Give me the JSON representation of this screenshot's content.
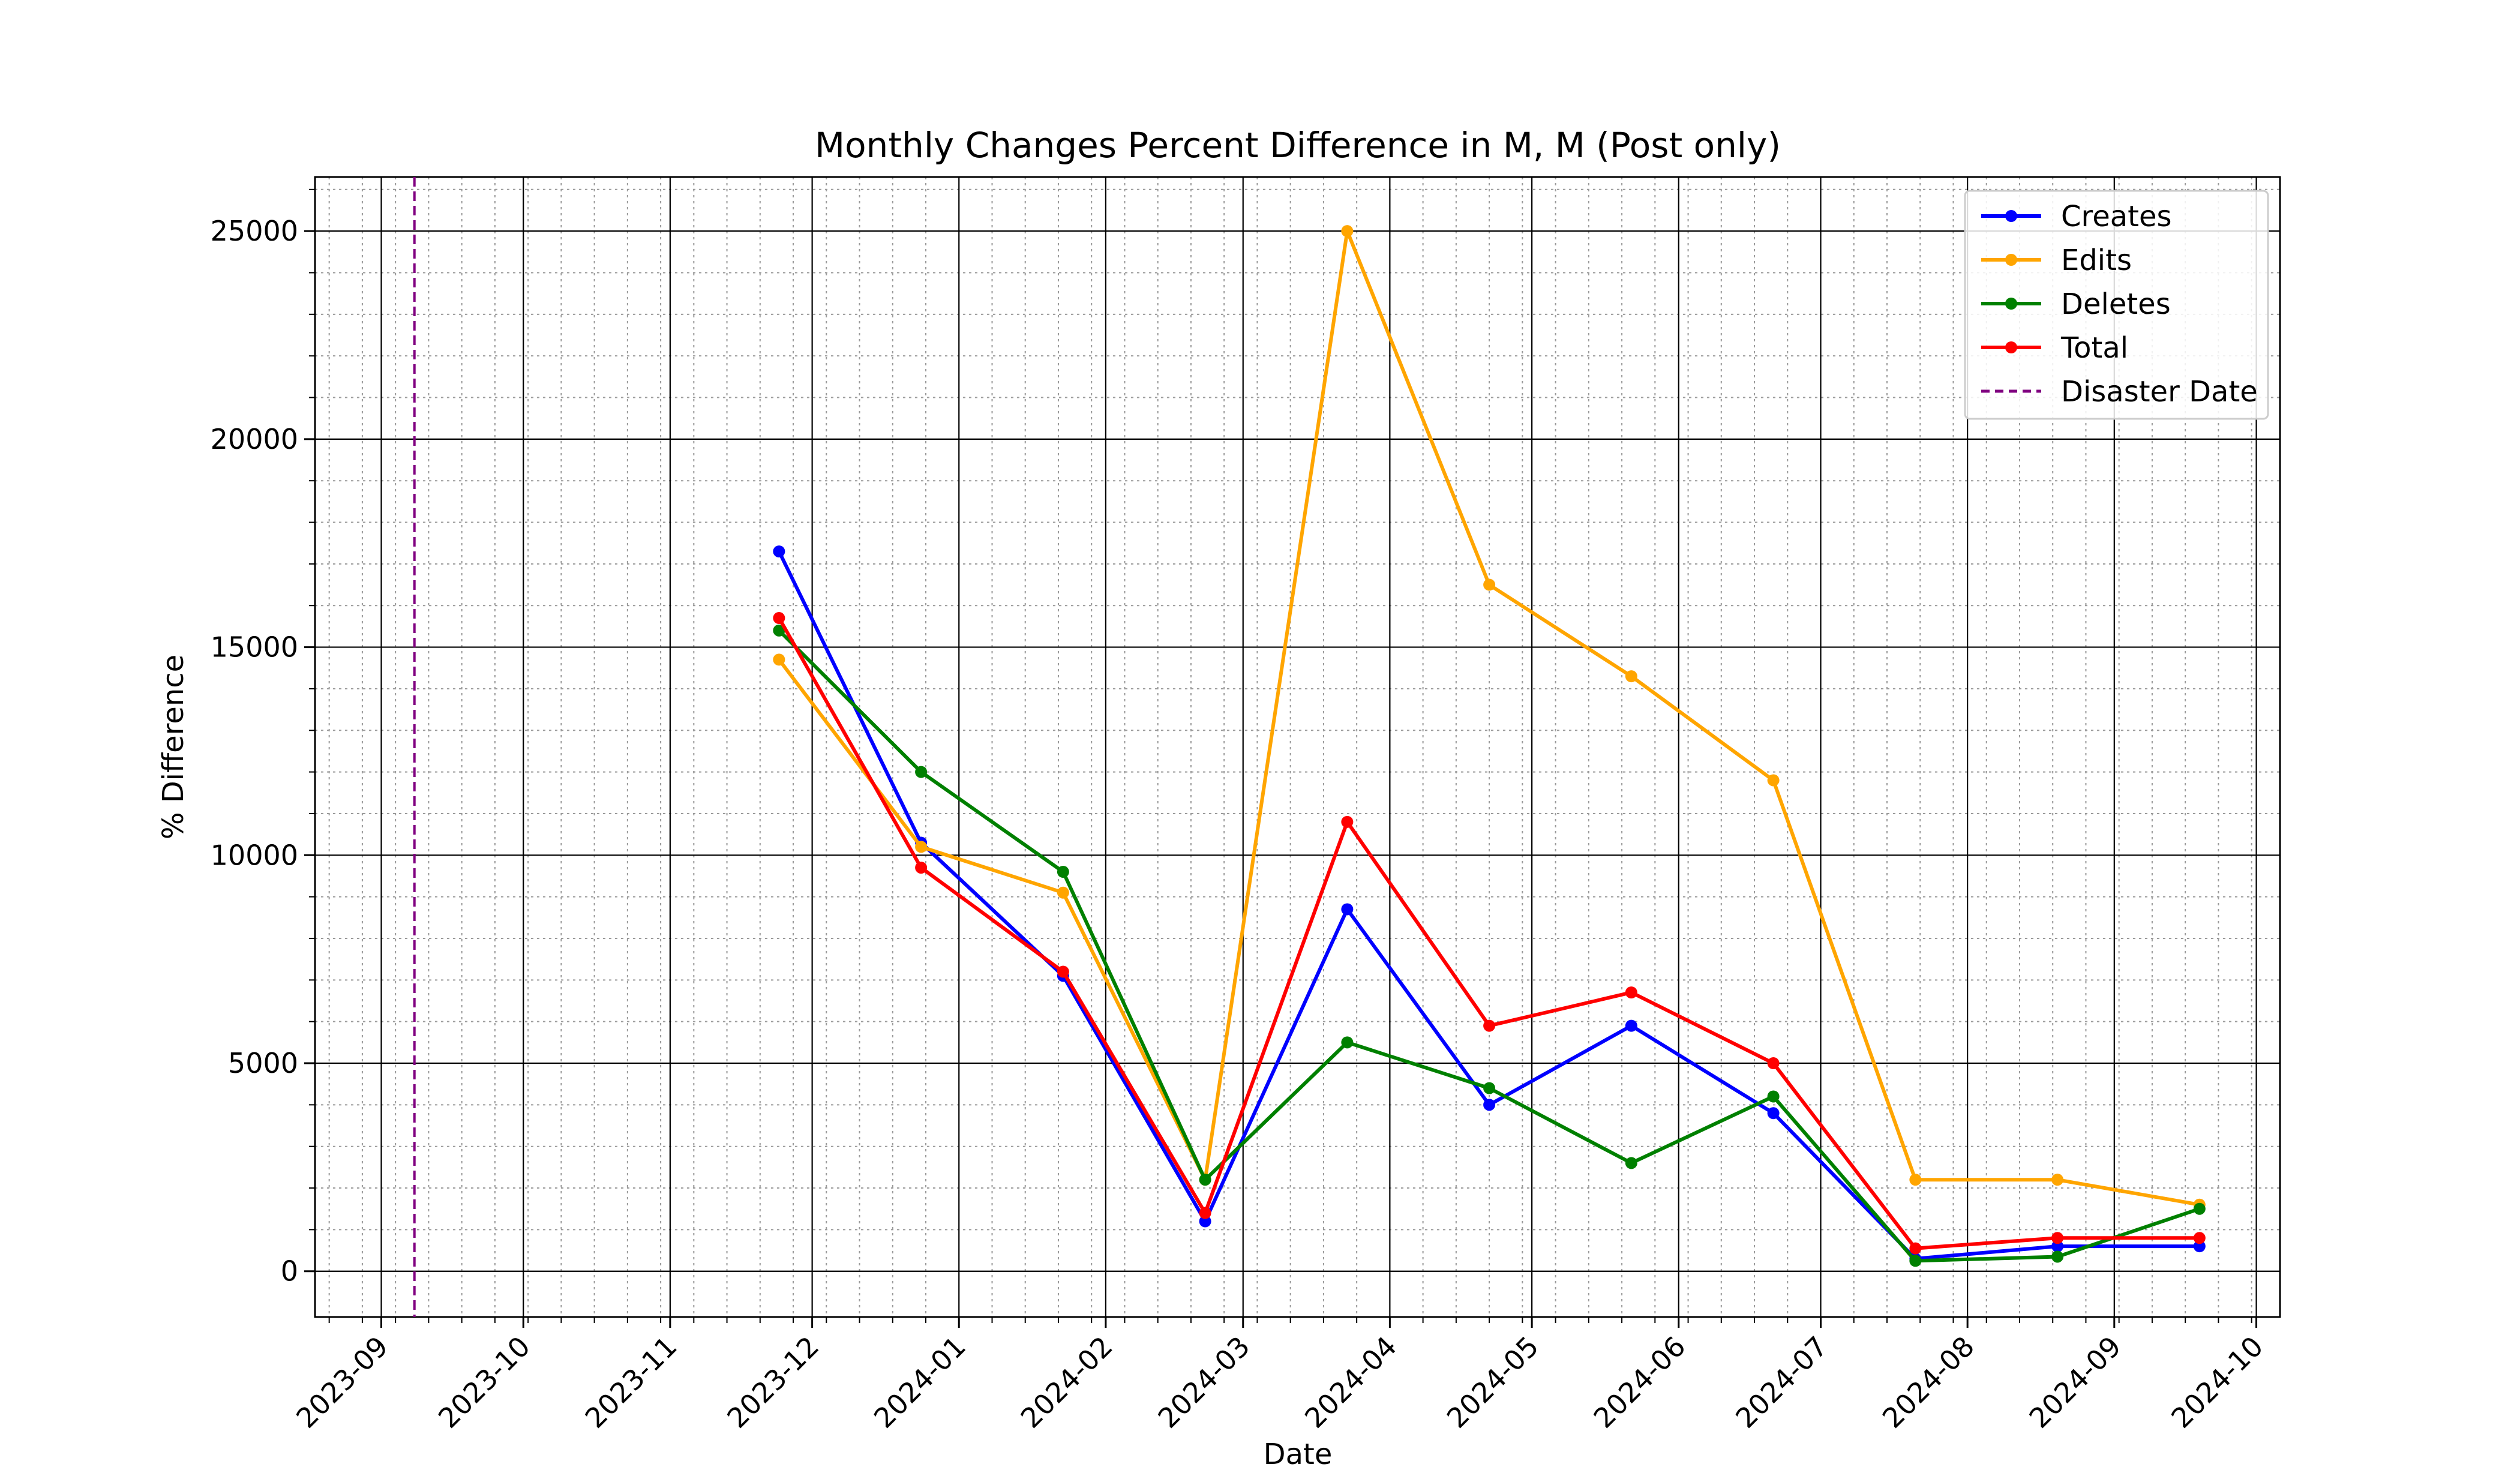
{
  "chart_data": {
    "type": "line",
    "title": "Monthly Changes Percent Difference in M, M (Post only)",
    "xlabel": "Date",
    "ylabel": "% Difference",
    "x_tick_labels": [
      "2023-09",
      "2023-10",
      "2023-11",
      "2023-12",
      "2024-01",
      "2024-02",
      "2024-03",
      "2024-04",
      "2024-05",
      "2024-06",
      "2024-07",
      "2024-08",
      "2024-09",
      "2024-10"
    ],
    "y_tick_labels": [
      "0",
      "5000",
      "10000",
      "15000",
      "20000",
      "25000"
    ],
    "ylim": [
      -1100,
      26300
    ],
    "xlim": [
      "2023-08-18",
      "2024-10-06"
    ],
    "grid": true,
    "legend_position": "top-right",
    "x": [
      "2023-11-24",
      "2023-12-24",
      "2024-01-23",
      "2024-02-22",
      "2024-03-23",
      "2024-04-22",
      "2024-05-22",
      "2024-06-21",
      "2024-07-21",
      "2024-08-20",
      "2024-09-19"
    ],
    "series": [
      {
        "name": "Creates",
        "color": "#0000ff",
        "values": [
          17300,
          10300,
          7100,
          1200,
          8700,
          4000,
          5900,
          3800,
          300,
          600,
          600
        ]
      },
      {
        "name": "Edits",
        "color": "#ffa500",
        "values": [
          14700,
          10200,
          9100,
          2200,
          25000,
          16500,
          14300,
          11800,
          2200,
          2200,
          1600
        ]
      },
      {
        "name": "Deletes",
        "color": "#008000",
        "values": [
          15400,
          12000,
          9600,
          2200,
          5500,
          4400,
          2600,
          4200,
          250,
          350,
          1500
        ]
      },
      {
        "name": "Total",
        "color": "#ff0000",
        "values": [
          15700,
          9700,
          7200,
          1400,
          10800,
          5900,
          6700,
          5000,
          550,
          800,
          800
        ]
      }
    ],
    "vline": {
      "name": "Disaster Date",
      "x": "2023-09-08",
      "color": "#800080",
      "style": "dashed"
    }
  }
}
